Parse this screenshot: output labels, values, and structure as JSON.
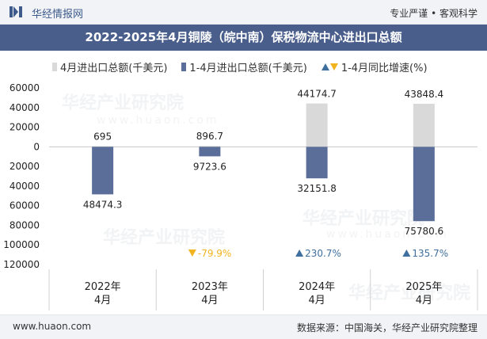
{
  "header": {
    "brand": "华经情报网",
    "slogan": "专业严谨 • 客观科学"
  },
  "title": "2022-2025年4月铜陵（皖中南）保税物流中心进出口总额",
  "legend": {
    "series_a": "4月进出口总额(千美元)",
    "series_b": "1-4月进出口总额(千美元)",
    "series_c": "1-4月同比增速(%)"
  },
  "footer": {
    "url": "www.huaon.com",
    "source": "数据来源：中国海关，华经产业研究院整理"
  },
  "watermark": {
    "text": "华经产业研究院",
    "url": "www.huaon.com"
  },
  "colors": {
    "series_a": "#d9d9d9",
    "series_b": "#5a6e99",
    "up": "#3e6f9e",
    "down": "#f2b41e",
    "title_bg": "#4a5e8c"
  },
  "chart_data": {
    "type": "bar",
    "categories": [
      "2022年\n4月",
      "2023年\n4月",
      "2024年\n4月",
      "2025年\n4月"
    ],
    "series": [
      {
        "name": "4月进出口总额(千美元)",
        "values": [
          695,
          896.7,
          44174.7,
          43848.4
        ],
        "labels": [
          "695",
          "896.7",
          "44174.7",
          "43848.4"
        ]
      },
      {
        "name": "1-4月进出口总额(千美元)",
        "values": [
          -48474.3,
          -9723.6,
          -32151.8,
          -75780.6
        ],
        "labels": [
          "48474.3",
          "9723.6",
          "32151.8",
          "75780.6"
        ]
      },
      {
        "name": "1-4月同比增速(%)",
        "values": [
          null,
          -79.9,
          230.7,
          135.7
        ],
        "labels": [
          "",
          "-79.9%",
          "230.7%",
          "135.7%"
        ]
      }
    ],
    "y_ticks": [
      60000,
      40000,
      20000,
      0,
      -20000,
      -40000,
      -60000,
      -80000,
      -100000,
      -120000
    ],
    "y_tick_labels": [
      "60000",
      "40000",
      "20000",
      "0",
      "20000",
      "40000",
      "60000",
      "80000",
      "100000",
      "120000"
    ],
    "ylim": [
      -120000,
      60000
    ]
  }
}
